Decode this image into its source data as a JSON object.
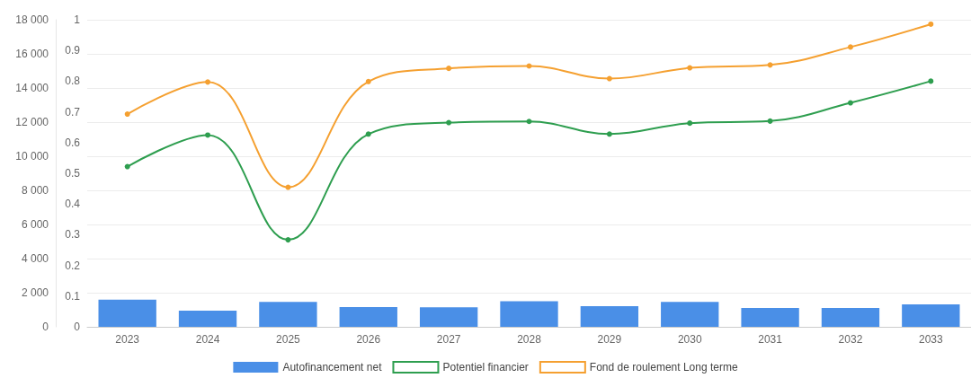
{
  "chart_data": {
    "type": "bar",
    "categories": [
      "2023",
      "2024",
      "2025",
      "2026",
      "2027",
      "2028",
      "2029",
      "2030",
      "2031",
      "2032",
      "2033"
    ],
    "series": [
      {
        "name": "Autofinancement net",
        "color": "#4a8fe7",
        "values": [
          1590,
          950,
          1460,
          1160,
          1140,
          1500,
          1210,
          1460,
          1100,
          1100,
          1310
        ]
      },
      {
        "name": "Potentiel financier",
        "type": "line",
        "color": "#2e9e4f",
        "values": [
          9390,
          11240,
          5100,
          11300,
          11970,
          12040,
          11300,
          11940,
          12060,
          13130,
          14400
        ]
      },
      {
        "name": "Fond de roulement Long terme",
        "type": "line",
        "color": "#f5a030",
        "values": [
          12470,
          14350,
          8180,
          14380,
          15150,
          15290,
          14550,
          15180,
          15350,
          16400,
          17740
        ]
      }
    ],
    "ylim": [
      0,
      18000
    ],
    "yticks": [
      {
        "value": 0,
        "label": "0"
      },
      {
        "value": 2000,
        "label": "2 000"
      },
      {
        "value": 4000,
        "label": "4 000"
      },
      {
        "value": 6000,
        "label": "6 000"
      },
      {
        "value": 8000,
        "label": "8 000"
      },
      {
        "value": 10000,
        "label": "10 000"
      },
      {
        "value": 12000,
        "label": "12 000"
      },
      {
        "value": 14000,
        "label": "14 000"
      },
      {
        "value": 16000,
        "label": "16 000"
      },
      {
        "value": 18000,
        "label": "18 000"
      }
    ],
    "y2lim": [
      0,
      1
    ],
    "y2ticks": [
      0,
      0.1,
      0.2,
      0.3,
      0.4,
      0.5,
      0.6,
      0.7,
      0.8,
      0.9,
      1
    ],
    "grid": "y",
    "legend": "bottom",
    "marker": "circle",
    "line_style": "solid"
  }
}
